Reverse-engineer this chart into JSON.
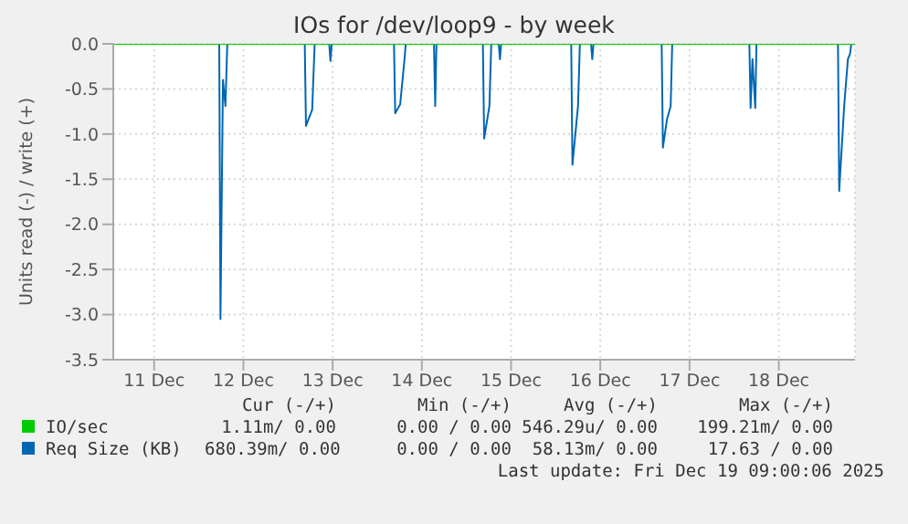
{
  "chart_data": {
    "type": "line",
    "title": "IOs for /dev/loop9 - by week",
    "ylabel": "Units read (-) / write (+)",
    "xlim": [
      "2025-12-11T01:00",
      "2025-12-19T08:30"
    ],
    "xticks": [
      {
        "value": "2025-12-11T12:00",
        "label": "11 Dec"
      },
      {
        "value": "2025-12-12T12:00",
        "label": "12 Dec"
      },
      {
        "value": "2025-12-13T12:00",
        "label": "13 Dec"
      },
      {
        "value": "2025-12-14T12:00",
        "label": "14 Dec"
      },
      {
        "value": "2025-12-15T12:00",
        "label": "15 Dec"
      },
      {
        "value": "2025-12-16T12:00",
        "label": "16 Dec"
      },
      {
        "value": "2025-12-17T12:00",
        "label": "17 Dec"
      },
      {
        "value": "2025-12-18T12:00",
        "label": "18 Dec"
      }
    ],
    "ylim": [
      -3.5,
      0
    ],
    "yticks": [
      {
        "value": 0,
        "label": "0.0"
      },
      -0.5,
      {
        "value": -1,
        "label": "-1.0"
      },
      -1.5,
      {
        "value": -2,
        "label": "-2.0"
      },
      -2.5,
      {
        "value": -3,
        "label": "-3.0"
      },
      -3.5
    ],
    "grid": true,
    "legend": "bottom",
    "marker": "none",
    "line_style": "solid",
    "series": [
      {
        "name": "IO/sec",
        "color": "#00cc00",
        "x": [
          "2025-12-11T01:00",
          "2025-12-19T08:30"
        ],
        "values": [
          0,
          0
        ]
      },
      {
        "name": "Req Size (KB)",
        "color": "#0066b3",
        "x": [
          "2025-12-11T01:00",
          "2025-12-12T05:30",
          "2025-12-12T05:50",
          "2025-12-12T06:30",
          "2025-12-12T07:10",
          "2025-12-12T07:40",
          "2025-12-13T04:30",
          "2025-12-13T04:50",
          "2025-12-13T06:30",
          "2025-12-13T07:10",
          "2025-12-13T11:05",
          "2025-12-13T11:25",
          "2025-12-13T11:45",
          "2025-12-14T04:30",
          "2025-12-14T04:50",
          "2025-12-14T06:10",
          "2025-12-14T07:20",
          "2025-12-14T07:40",
          "2025-12-14T15:15",
          "2025-12-14T15:35",
          "2025-12-14T15:55",
          "2025-12-15T04:25",
          "2025-12-15T04:45",
          "2025-12-15T06:10",
          "2025-12-15T06:40",
          "2025-12-15T08:40",
          "2025-12-15T09:00",
          "2025-12-15T09:20",
          "2025-12-16T04:10",
          "2025-12-16T04:30",
          "2025-12-16T06:00",
          "2025-12-16T06:30",
          "2025-12-16T09:30",
          "2025-12-16T09:50",
          "2025-12-16T10:10",
          "2025-12-17T04:30",
          "2025-12-17T04:50",
          "2025-12-17T05:55",
          "2025-12-17T06:55",
          "2025-12-17T07:20",
          "2025-12-18T04:05",
          "2025-12-18T04:25",
          "2025-12-18T04:55",
          "2025-12-18T05:40",
          "2025-12-18T06:00",
          "2025-12-19T03:55",
          "2025-12-19T04:15",
          "2025-12-19T05:35",
          "2025-12-19T06:35",
          "2025-12-19T07:10",
          "2025-12-19T07:30",
          "2025-12-19T08:30"
        ],
        "values": [
          0,
          0,
          -3.05,
          -0.4,
          -0.69,
          0,
          0,
          -0.91,
          -0.73,
          0,
          0,
          -0.19,
          0,
          0,
          -0.77,
          -0.67,
          -0.17,
          0,
          0,
          -0.69,
          0,
          0,
          -1.05,
          -0.69,
          0,
          0,
          -0.17,
          0,
          0,
          -1.34,
          -0.69,
          0,
          0,
          -0.17,
          0,
          0,
          -1.15,
          -0.84,
          -0.69,
          0,
          0,
          -0.71,
          -0.17,
          -0.71,
          0,
          0,
          -1.63,
          -0.69,
          -0.17,
          -0.11,
          0,
          0
        ]
      }
    ],
    "annotations": [
      "Cur (-/+)",
      "Min (-/+)",
      "Avg (-/+)",
      "Max (-/+)",
      "1.11m/ 0.00",
      "0.00 / 0.00",
      "546.29u/ 0.00",
      "199.21m/ 0.00",
      "680.39m/ 0.00",
      "0.00 / 0.00",
      "58.13m/ 0.00",
      "17.63 / 0.00",
      "Last update: Fri Dec 19 09:00:06 2025"
    ]
  }
}
